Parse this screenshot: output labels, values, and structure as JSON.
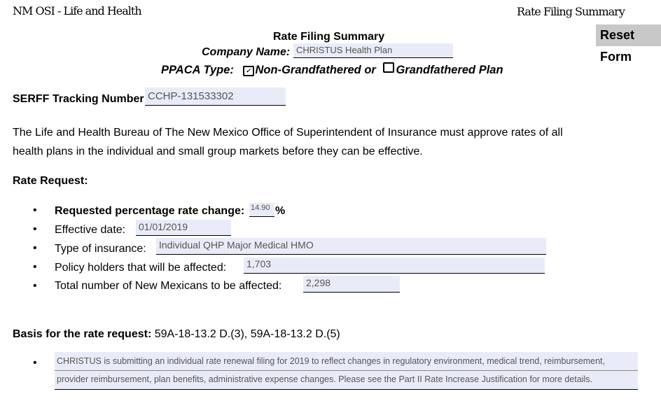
{
  "header": {
    "left": "NM OSI - Life and Health",
    "right": "Rate Filing Summary"
  },
  "reset_button": "Reset Form",
  "title": "Rate Filing Summary",
  "company": {
    "label": "Company Name:",
    "value": "CHRISTUS Health Plan"
  },
  "ppaca": {
    "label": "PPACA Type:",
    "option1": "Non-Grandfathered or",
    "option1_checked": true,
    "option2": "Grandfathered Plan",
    "option2_checked": false
  },
  "serff": {
    "label": "SERFF Tracking Number:",
    "value": "CCHP-131533302"
  },
  "intro": [
    "The Life and Health Bureau of The New Mexico Office of Superintendent of Insurance must approve rates of all",
    "health plans in the individual and small group markets before they can be effective."
  ],
  "rate_request": {
    "heading": "Rate Request:",
    "items": [
      {
        "label": "Requested  percentage rate change:",
        "value": "14.90",
        "suffix": "%"
      },
      {
        "label": "Effective date:",
        "value": "01/01/2019"
      },
      {
        "label": "Type of insurance:",
        "value": "Individual QHP Major Medical HMO"
      },
      {
        "label": "Policy holders that will be affected:",
        "value": "1,703"
      },
      {
        "label": "Total number of New Mexicans to be affected:",
        "value": "2,298"
      }
    ]
  },
  "basis": {
    "label": "Basis for the rate request:",
    "value": "59A-18-13.2 D.(3),  59A-18-13.2 D.(5)",
    "lines": [
      "CHRISTUS is submitting an individual rate renewal filing for 2019 to reflect changes in regulatory environment, medical trend, reimbursement,",
      "provider reimbursement, plan benefits, administrative expense changes. Please see the Part II Rate Increase Justification for more details."
    ]
  }
}
